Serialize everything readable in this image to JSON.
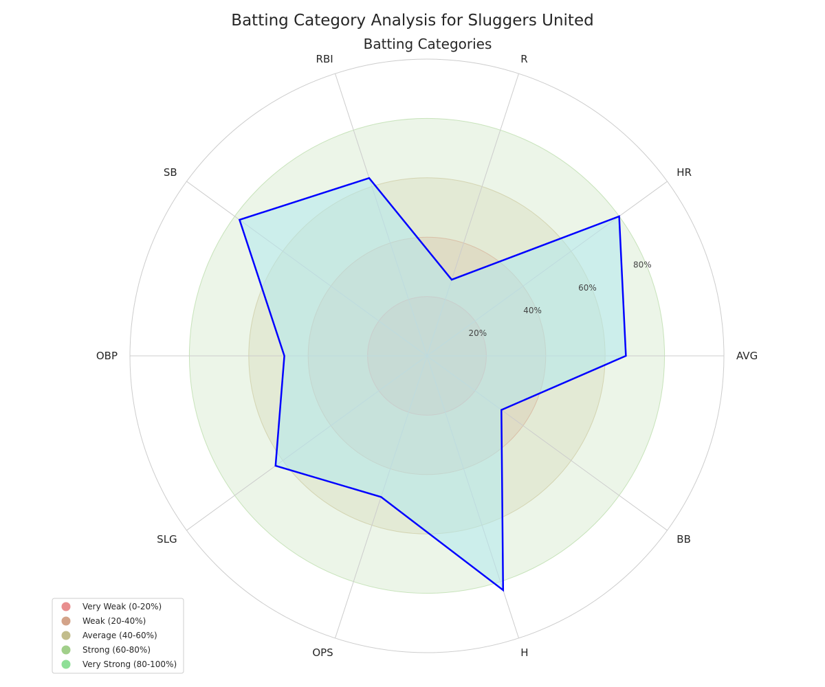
{
  "chart_data": {
    "type": "radar",
    "title": "Batting Category Analysis for Sluggers United",
    "subtitle": "Batting Categories",
    "categories": [
      "AVG",
      "HR",
      "R",
      "RBI",
      "SB",
      "OBP",
      "SLG",
      "OPS",
      "H",
      "BB"
    ],
    "series": [
      {
        "values": [
          67,
          80,
          27,
          63,
          78,
          48,
          63,
          50,
          83,
          31
        ],
        "color": "#0000ff",
        "fill": "#b3e8ec"
      }
    ],
    "rlim": [
      0,
      100
    ],
    "radial_ticks": [
      20,
      40,
      60,
      80
    ],
    "radial_tick_labels": [
      "20%",
      "40%",
      "60%",
      "80%"
    ],
    "bands": [
      {
        "label": "Very Weak (0-20%)",
        "from": 0,
        "to": 20,
        "color": "#e88e8e"
      },
      {
        "label": "Weak (20-40%)",
        "from": 20,
        "to": 40,
        "color": "#d3a389"
      },
      {
        "label": "Average (40-60%)",
        "from": 40,
        "to": 60,
        "color": "#c2bd8c"
      },
      {
        "label": "Strong (60-80%)",
        "from": 60,
        "to": 80,
        "color": "#a1cf8a"
      },
      {
        "label": "Very Strong (80-100%)",
        "from": 80,
        "to": 100,
        "color": "#8edf97"
      }
    ],
    "legend_position": "lower-left",
    "grid": true
  }
}
